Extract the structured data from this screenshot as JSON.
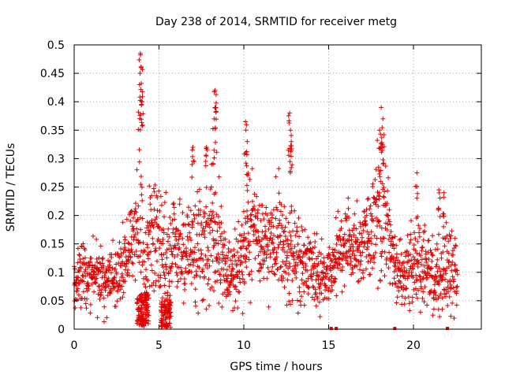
{
  "chart_data": {
    "type": "scatter",
    "title": "Day 238 of 2014, SRMTID for receiver metg",
    "xlabel": "GPS time / hours",
    "ylabel": "SRMTID / TECUs",
    "xlim": [
      0,
      24
    ],
    "ylim": [
      0,
      0.5
    ],
    "x_ticks": [
      0,
      5,
      10,
      15,
      20
    ],
    "x_tick_labels": [
      "0",
      "5",
      "10",
      "15",
      "20"
    ],
    "y_ticks": [
      0,
      0.05,
      0.1,
      0.15,
      0.2,
      0.25,
      0.3,
      0.35,
      0.4,
      0.45,
      0.5
    ],
    "y_tick_labels": [
      "0",
      "0.05",
      "0.1",
      "0.15",
      "0.2",
      "0.25",
      "0.3",
      "0.35",
      "0.4",
      "0.45",
      "0.5"
    ],
    "grid": true,
    "marker": "plus",
    "color": "#e00000",
    "series": [
      {
        "name": "SRMTID",
        "envelope_note": "dense point cloud sampled along the visible profile",
        "profile_x": [
          0.0,
          0.3,
          0.8,
          1.3,
          1.8,
          2.3,
          2.8,
          3.3,
          3.6,
          3.9,
          4.1,
          4.4,
          4.8,
          5.2,
          5.5,
          5.9,
          6.4,
          6.9,
          7.4,
          7.9,
          8.3,
          8.8,
          9.3,
          9.8,
          10.3,
          10.8,
          11.3,
          11.8,
          12.3,
          12.8,
          13.3,
          13.8,
          14.3,
          14.8,
          15.2,
          15.6,
          16.0,
          16.5,
          17.0,
          17.5,
          17.9,
          18.3,
          18.6,
          19.0,
          19.5,
          20.0,
          20.5,
          21.0,
          21.5,
          22.0,
          22.5
        ],
        "profile_center": [
          0.09,
          0.1,
          0.09,
          0.1,
          0.08,
          0.09,
          0.11,
          0.13,
          0.16,
          0.2,
          0.1,
          0.16,
          0.18,
          0.12,
          0.12,
          0.14,
          0.13,
          0.15,
          0.16,
          0.15,
          0.17,
          0.11,
          0.09,
          0.12,
          0.16,
          0.17,
          0.15,
          0.16,
          0.14,
          0.13,
          0.12,
          0.11,
          0.1,
          0.09,
          0.09,
          0.14,
          0.15,
          0.14,
          0.15,
          0.17,
          0.22,
          0.2,
          0.16,
          0.1,
          0.1,
          0.11,
          0.12,
          0.1,
          0.09,
          0.11,
          0.1
        ],
        "profile_spread": [
          0.04,
          0.05,
          0.04,
          0.05,
          0.04,
          0.04,
          0.05,
          0.05,
          0.06,
          0.12,
          0.09,
          0.08,
          0.07,
          0.07,
          0.08,
          0.06,
          0.06,
          0.07,
          0.08,
          0.09,
          0.1,
          0.06,
          0.05,
          0.06,
          0.08,
          0.06,
          0.06,
          0.07,
          0.08,
          0.06,
          0.06,
          0.05,
          0.05,
          0.04,
          0.04,
          0.05,
          0.06,
          0.05,
          0.05,
          0.06,
          0.1,
          0.08,
          0.06,
          0.05,
          0.05,
          0.06,
          0.06,
          0.05,
          0.05,
          0.06,
          0.05
        ],
        "peaks": [
          {
            "x": 3.9,
            "y": 0.485
          },
          {
            "x": 3.95,
            "y": 0.46
          },
          {
            "x": 3.85,
            "y": 0.43
          },
          {
            "x": 4.0,
            "y": 0.4
          },
          {
            "x": 8.3,
            "y": 0.42
          },
          {
            "x": 8.35,
            "y": 0.39
          },
          {
            "x": 8.25,
            "y": 0.37
          },
          {
            "x": 10.1,
            "y": 0.365
          },
          {
            "x": 10.2,
            "y": 0.33
          },
          {
            "x": 12.7,
            "y": 0.38
          },
          {
            "x": 12.75,
            "y": 0.35
          },
          {
            "x": 12.8,
            "y": 0.33
          },
          {
            "x": 18.1,
            "y": 0.39
          },
          {
            "x": 18.2,
            "y": 0.37
          },
          {
            "x": 18.0,
            "y": 0.35
          },
          {
            "x": 7.0,
            "y": 0.32
          },
          {
            "x": 7.8,
            "y": 0.32
          },
          {
            "x": 20.2,
            "y": 0.275
          },
          {
            "x": 21.5,
            "y": 0.245
          },
          {
            "x": 21.8,
            "y": 0.24
          }
        ],
        "zero_points_x": [
          15.15,
          15.45,
          18.9,
          22.0
        ]
      }
    ]
  }
}
